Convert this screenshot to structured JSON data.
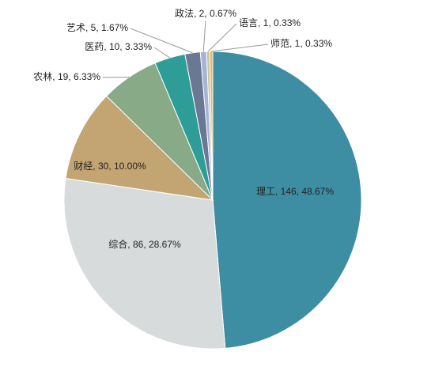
{
  "chart_data": {
    "type": "pie",
    "categories": [
      "理工",
      "综合",
      "财经",
      "农林",
      "医药",
      "艺术",
      "政法",
      "语言",
      "师范"
    ],
    "values": [
      146,
      86,
      30,
      19,
      10,
      5,
      2,
      1,
      1
    ],
    "value_labels": [
      "理工, 146, 48.67%",
      "综合, 86, 28.67%",
      "财经, 30, 10.00%",
      "农林, 19, 6.33%",
      "医药, 10, 3.33%",
      "艺术, 5, 1.67%",
      "政法, 2, 0.67%",
      "语言, 1, 0.33%",
      "师范, 1, 0.33%"
    ],
    "colors": [
      "#3e8ea3",
      "#d8dbdb",
      "#c3a473",
      "#88aa86",
      "#2e9d98",
      "#6b7893",
      "#a6b3d6",
      "#c8c39f",
      "#e6b76a"
    ]
  }
}
